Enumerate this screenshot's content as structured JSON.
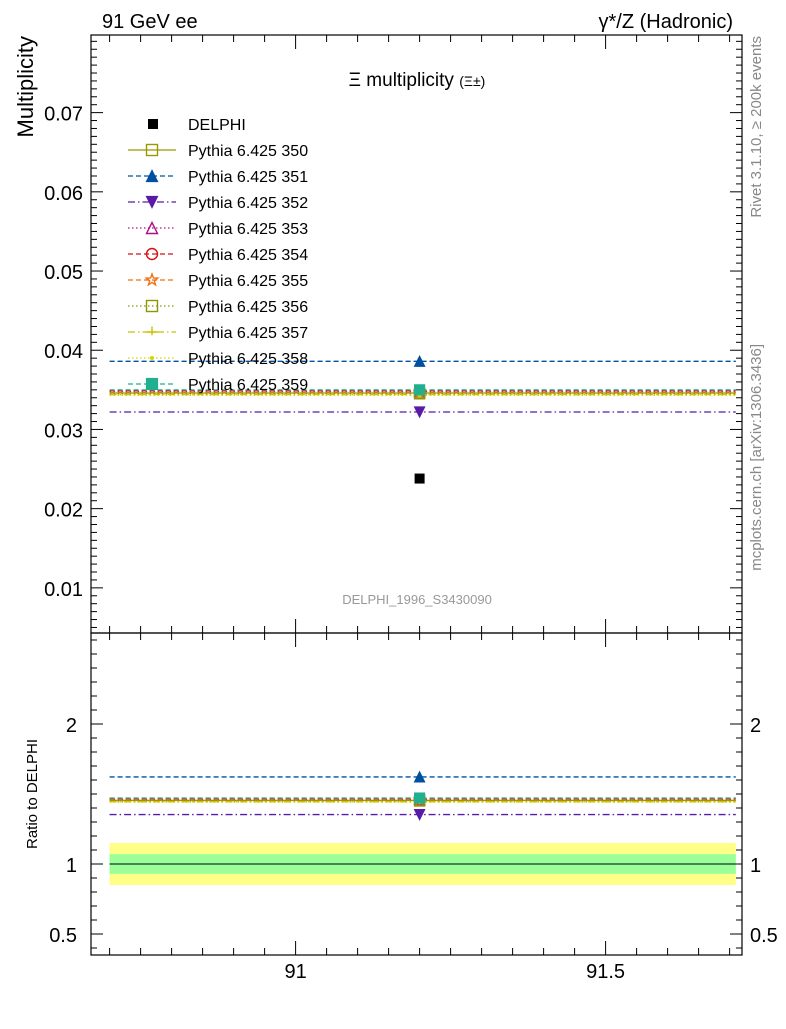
{
  "header": {
    "left_label": "91 GeV ee",
    "right_label": "γ*/Z (Hadronic)"
  },
  "side_text": {
    "rivet": "Rivet 3.1.10, ≥ 200k events",
    "mcplots": "mcplots.cern.ch [arXiv:1306.3436]"
  },
  "chart_data": [
    {
      "type": "scatter",
      "title": "Ξ multiplicity",
      "title_suffix": "(Ξ±)",
      "ylabel": "Multiplicity",
      "xlabel": "",
      "watermark": "DELPHI_1996_S3430090",
      "xlim": [
        90.67,
        91.72
      ],
      "ylim": [
        0.0043,
        0.0798
      ],
      "x_ticks": [
        91,
        91.5
      ],
      "y_ticks": [
        0.01,
        0.02,
        0.03,
        0.04,
        0.05,
        0.06,
        0.07
      ],
      "y_tick_labels": [
        "0.01",
        "0.02",
        "0.03",
        "0.04",
        "0.05",
        "0.06",
        "0.07"
      ],
      "legend_position": "top-left",
      "data": {
        "name": "DELPHI",
        "x": 91.2,
        "y": 0.0238,
        "color": "#000000"
      },
      "series": [
        {
          "name": "Pythia 6.425 350",
          "y": 0.0346,
          "color": "#999900",
          "marker": "square-open",
          "dash": "solid"
        },
        {
          "name": "Pythia 6.425 351",
          "y": 0.0386,
          "color": "#0050a0",
          "marker": "triangle-up",
          "dash": "dashed"
        },
        {
          "name": "Pythia 6.425 352",
          "y": 0.0322,
          "color": "#5a1aa8",
          "marker": "triangle-down",
          "dash": "dashdot"
        },
        {
          "name": "Pythia 6.425 353",
          "y": 0.0348,
          "color": "#b0108a",
          "marker": "triangle-open",
          "dash": "dotted"
        },
        {
          "name": "Pythia 6.425 354",
          "y": 0.0349,
          "color": "#d81010",
          "marker": "circle-open",
          "dash": "dashed"
        },
        {
          "name": "Pythia 6.425 355",
          "y": 0.0347,
          "color": "#f07010",
          "marker": "star-open",
          "dash": "dashed"
        },
        {
          "name": "Pythia 6.425 356",
          "y": 0.0345,
          "color": "#889a00",
          "marker": "square-open",
          "dash": "dotted"
        },
        {
          "name": "Pythia 6.425 357",
          "y": 0.0344,
          "color": "#c8c000",
          "marker": "tri",
          "dash": "dashdot"
        },
        {
          "name": "Pythia 6.425 358",
          "y": 0.0343,
          "color": "#d4d400",
          "marker": "dot",
          "dash": "dotted"
        },
        {
          "name": "Pythia 6.425 359",
          "y": 0.035,
          "color": "#20b090",
          "marker": "square",
          "dash": "dashed"
        }
      ]
    },
    {
      "type": "scatter",
      "ylabel": "Ratio to DELPHI",
      "ylim": [
        0.35,
        2.65
      ],
      "y_ticks": [
        0.5,
        1,
        2
      ],
      "y_tick_labels": [
        "0.5",
        "1",
        "2"
      ],
      "x_ticks": [
        91,
        91.5
      ],
      "x_tick_labels": [
        "91",
        "91.5"
      ],
      "reference": 1,
      "band_inner": [
        0.93,
        1.07
      ],
      "band_outer": [
        0.85,
        1.15
      ],
      "ratios": [
        1.454,
        1.622,
        1.353,
        1.462,
        1.466,
        1.458,
        1.45,
        1.445,
        1.441,
        1.471
      ]
    }
  ]
}
